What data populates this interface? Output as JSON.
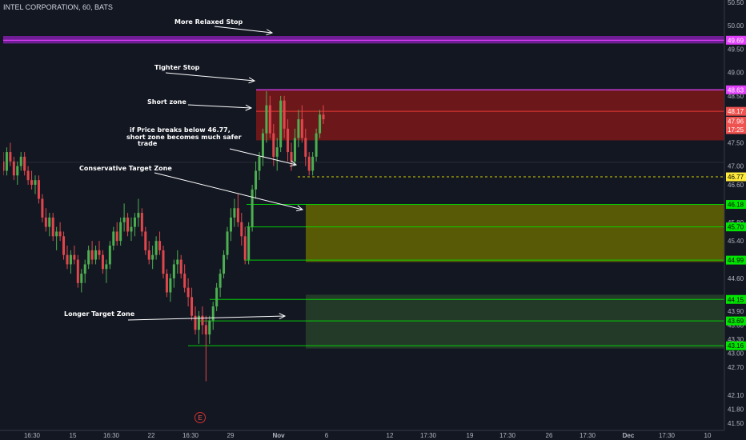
{
  "header": {
    "title": "INTEL CORPORATION, 60, BATS"
  },
  "event_marker": {
    "label": "E"
  },
  "colors": {
    "background": "#131722",
    "up": "#26a69a",
    "down": "#ef5350",
    "up_candle": "#4caf50",
    "down_candle": "#e0474c",
    "stop": "#e040fb",
    "level": "#00e600",
    "red_zone": "#8b1a1a",
    "yellow_zone": "#6b6b00",
    "green_zone": "#2b4a2b"
  },
  "chart_data": {
    "type": "candlestick",
    "title": "INTEL CORPORATION, 60, BATS",
    "y_axis": {
      "position": "right",
      "ylim": [
        41.35,
        50.55
      ],
      "ticks": [
        "50.50",
        "50.00",
        "49.50",
        "49.00",
        "48.50",
        "47.50",
        "47.00",
        "46.60",
        "45.80",
        "45.40",
        "44.60",
        "43.90",
        "43.60",
        "43.30",
        "43.00",
        "42.70",
        "42.10",
        "41.80",
        "41.50"
      ]
    },
    "x_axis": {
      "ticks": [
        "16:30",
        "15",
        "16:30",
        "22",
        "16:30",
        "29",
        "Nov",
        "6",
        "12",
        "17:30",
        "19",
        "17:30",
        "26",
        "17:30",
        "Dec",
        "17:30",
        "10"
      ]
    },
    "price_labels": [
      {
        "text": "49.69",
        "value": 49.69,
        "kind": "stop"
      },
      {
        "text": "48.63",
        "value": 48.63,
        "kind": "stop"
      },
      {
        "text": "48.17",
        "value": 48.17,
        "kind": "red"
      },
      {
        "text": "47.96",
        "value": 47.96,
        "kind": "red"
      },
      {
        "text": "17:25",
        "value": 47.78,
        "kind": "red"
      },
      {
        "text": "46.77",
        "value": 46.77,
        "kind": "yellow"
      },
      {
        "text": "46.18",
        "value": 46.18,
        "kind": "level"
      },
      {
        "text": "45.70",
        "value": 45.7,
        "kind": "level"
      },
      {
        "text": "44.99",
        "value": 44.99,
        "kind": "level"
      },
      {
        "text": "44.15",
        "value": 44.15,
        "kind": "level"
      },
      {
        "text": "43.69",
        "value": 43.69,
        "kind": "level"
      },
      {
        "text": "43.16",
        "value": 43.16,
        "kind": "level"
      }
    ],
    "zones": [
      {
        "name": "more-relaxed-stop",
        "y1": 49.62,
        "y2": 49.78
      },
      {
        "name": "short-zone",
        "y1": 47.55,
        "y2": 48.63
      },
      {
        "name": "conservative-target",
        "y1": 44.95,
        "y2": 46.18
      },
      {
        "name": "longer-target",
        "y1": 43.1,
        "y2": 44.25
      }
    ],
    "annotations": [
      {
        "text": "More Relaxed Stop"
      },
      {
        "text": "Tighter Stop"
      },
      {
        "text": "Short zone"
      },
      {
        "text": "if Price breaks below 46.77,"
      },
      {
        "text": "short zone becomes much safer"
      },
      {
        "text": "trade"
      },
      {
        "text": "Conservative Target Zone"
      },
      {
        "text": "Longer Target Zone"
      }
    ],
    "candles": [
      [
        47.1,
        47.3,
        46.8,
        46.9
      ],
      [
        46.9,
        47.4,
        46.8,
        47.3
      ],
      [
        47.3,
        47.5,
        47.0,
        47.1
      ],
      [
        47.1,
        47.2,
        46.7,
        46.8
      ],
      [
        46.8,
        47.1,
        46.6,
        47.0
      ],
      [
        47.0,
        47.3,
        46.9,
        47.2
      ],
      [
        47.2,
        47.3,
        46.8,
        46.9
      ],
      [
        46.9,
        47.0,
        46.6,
        46.7
      ],
      [
        46.7,
        46.9,
        46.5,
        46.6
      ],
      [
        46.6,
        46.8,
        46.4,
        46.7
      ],
      [
        46.7,
        46.8,
        46.2,
        46.3
      ],
      [
        46.3,
        46.4,
        45.8,
        45.9
      ],
      [
        45.9,
        46.1,
        45.6,
        45.7
      ],
      [
        45.7,
        46.0,
        45.5,
        45.9
      ],
      [
        45.9,
        46.0,
        45.4,
        45.5
      ],
      [
        45.5,
        45.7,
        45.2,
        45.6
      ],
      [
        45.6,
        45.8,
        45.4,
        45.5
      ],
      [
        45.5,
        45.6,
        45.0,
        45.1
      ],
      [
        45.1,
        45.3,
        44.8,
        44.9
      ],
      [
        44.9,
        45.2,
        44.7,
        45.1
      ],
      [
        45.1,
        45.3,
        44.9,
        45.0
      ],
      [
        45.0,
        45.1,
        44.4,
        44.5
      ],
      [
        44.5,
        44.8,
        44.3,
        44.7
      ],
      [
        44.7,
        45.0,
        44.5,
        44.9
      ],
      [
        44.9,
        45.3,
        44.8,
        45.2
      ],
      [
        45.2,
        45.4,
        44.9,
        45.0
      ],
      [
        45.0,
        45.3,
        44.9,
        45.2
      ],
      [
        45.2,
        45.4,
        45.0,
        45.1
      ],
      [
        45.1,
        45.2,
        44.7,
        44.8
      ],
      [
        44.8,
        45.0,
        44.5,
        44.9
      ],
      [
        44.9,
        45.4,
        44.8,
        45.3
      ],
      [
        45.3,
        45.7,
        45.2,
        45.6
      ],
      [
        45.6,
        45.8,
        45.3,
        45.4
      ],
      [
        45.4,
        45.9,
        45.3,
        45.8
      ],
      [
        45.8,
        46.2,
        45.6,
        45.9
      ],
      [
        45.9,
        46.0,
        45.5,
        45.6
      ],
      [
        45.6,
        45.9,
        45.4,
        45.7
      ],
      [
        45.7,
        46.0,
        45.5,
        45.9
      ],
      [
        45.9,
        46.3,
        45.7,
        46.0
      ],
      [
        46.0,
        46.1,
        45.5,
        45.6
      ],
      [
        45.6,
        45.7,
        45.1,
        45.2
      ],
      [
        45.2,
        45.4,
        44.9,
        45.0
      ],
      [
        45.0,
        45.3,
        44.8,
        45.1
      ],
      [
        45.1,
        45.5,
        45.0,
        45.4
      ],
      [
        45.4,
        45.6,
        45.1,
        45.2
      ],
      [
        45.2,
        45.3,
        44.6,
        44.7
      ],
      [
        44.7,
        44.8,
        44.2,
        44.3
      ],
      [
        44.3,
        44.7,
        44.1,
        44.6
      ],
      [
        44.6,
        45.0,
        44.4,
        44.9
      ],
      [
        44.9,
        45.2,
        44.7,
        45.0
      ],
      [
        45.0,
        45.1,
        44.6,
        44.7
      ],
      [
        44.7,
        44.9,
        44.3,
        44.4
      ],
      [
        44.4,
        44.6,
        44.0,
        44.2
      ],
      [
        44.2,
        44.4,
        43.7,
        43.8
      ],
      [
        43.8,
        44.0,
        43.4,
        43.5
      ],
      [
        43.5,
        43.9,
        43.2,
        43.8
      ],
      [
        43.8,
        44.0,
        43.4,
        43.6
      ],
      [
        43.6,
        43.8,
        42.4,
        43.4
      ],
      [
        43.4,
        43.8,
        43.2,
        43.7
      ],
      [
        43.7,
        44.1,
        43.5,
        44.0
      ],
      [
        44.0,
        44.5,
        43.9,
        44.4
      ],
      [
        44.4,
        44.8,
        44.2,
        44.7
      ],
      [
        44.7,
        45.2,
        44.6,
        45.1
      ],
      [
        45.1,
        45.7,
        45.0,
        45.6
      ],
      [
        45.6,
        46.1,
        45.4,
        45.9
      ],
      [
        45.9,
        46.3,
        45.7,
        46.1
      ],
      [
        46.1,
        46.4,
        45.7,
        45.8
      ],
      [
        45.8,
        46.0,
        45.3,
        45.5
      ],
      [
        45.5,
        45.7,
        44.9,
        45.0
      ],
      [
        45.0,
        45.8,
        44.9,
        45.7
      ],
      [
        45.7,
        46.6,
        45.6,
        46.5
      ],
      [
        46.5,
        47.1,
        46.3,
        46.9
      ],
      [
        46.9,
        47.3,
        46.7,
        47.2
      ],
      [
        47.2,
        47.8,
        47.0,
        47.7
      ],
      [
        47.7,
        48.6,
        47.5,
        48.3
      ],
      [
        48.3,
        48.5,
        47.6,
        47.7
      ],
      [
        47.7,
        47.9,
        47.0,
        47.2
      ],
      [
        47.2,
        47.6,
        46.9,
        47.4
      ],
      [
        47.4,
        48.5,
        47.3,
        48.4
      ],
      [
        48.4,
        48.5,
        47.6,
        47.8
      ],
      [
        47.8,
        48.0,
        47.1,
        47.3
      ],
      [
        47.3,
        47.5,
        46.9,
        47.1
      ],
      [
        47.1,
        47.8,
        47.0,
        47.6
      ],
      [
        47.6,
        48.2,
        47.4,
        48.0
      ],
      [
        48.0,
        48.3,
        47.5,
        47.6
      ],
      [
        47.6,
        47.8,
        47.0,
        47.2
      ],
      [
        47.2,
        47.3,
        46.8,
        46.9
      ],
      [
        46.9,
        47.3,
        46.8,
        47.2
      ],
      [
        47.2,
        47.8,
        47.1,
        47.7
      ],
      [
        47.7,
        48.2,
        47.6,
        48.1
      ],
      [
        48.1,
        48.3,
        47.9,
        48.0
      ]
    ]
  }
}
